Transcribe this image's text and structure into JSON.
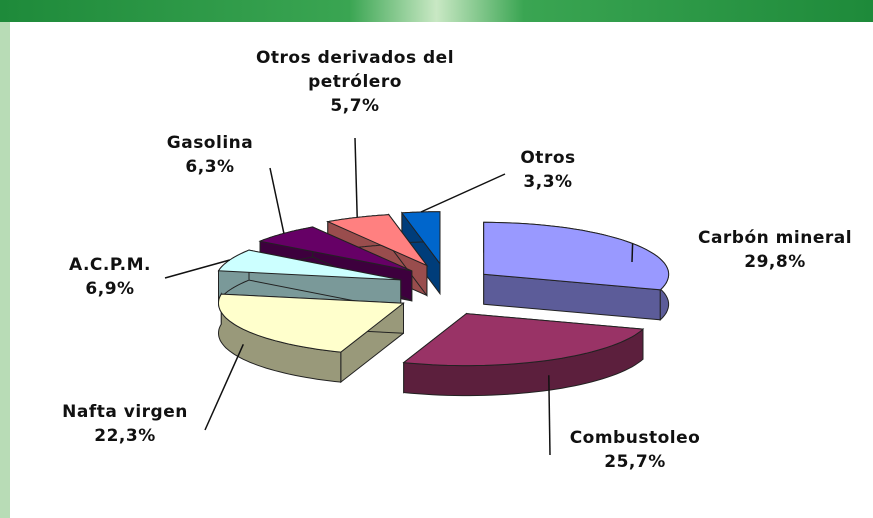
{
  "chart_data": {
    "type": "pie3d",
    "categories": [
      "Carbón mineral",
      "Combustoleo",
      "Nafta virgen",
      "A.C.P.M.",
      "Gasolina",
      "Otros derivados del petrólero",
      "Otros"
    ],
    "values": [
      29.8,
      25.7,
      22.3,
      6.9,
      6.3,
      5.7,
      3.3
    ],
    "value_labels": [
      "29,8%",
      "25,7%",
      "22,3%",
      "6,9%",
      "6,3%",
      "5,7%",
      "3,3%"
    ],
    "colors": [
      "#9999ff",
      "#993366",
      "#ffffcc",
      "#ccffff",
      "#660066",
      "#ff8080",
      "#0066cc"
    ]
  }
}
